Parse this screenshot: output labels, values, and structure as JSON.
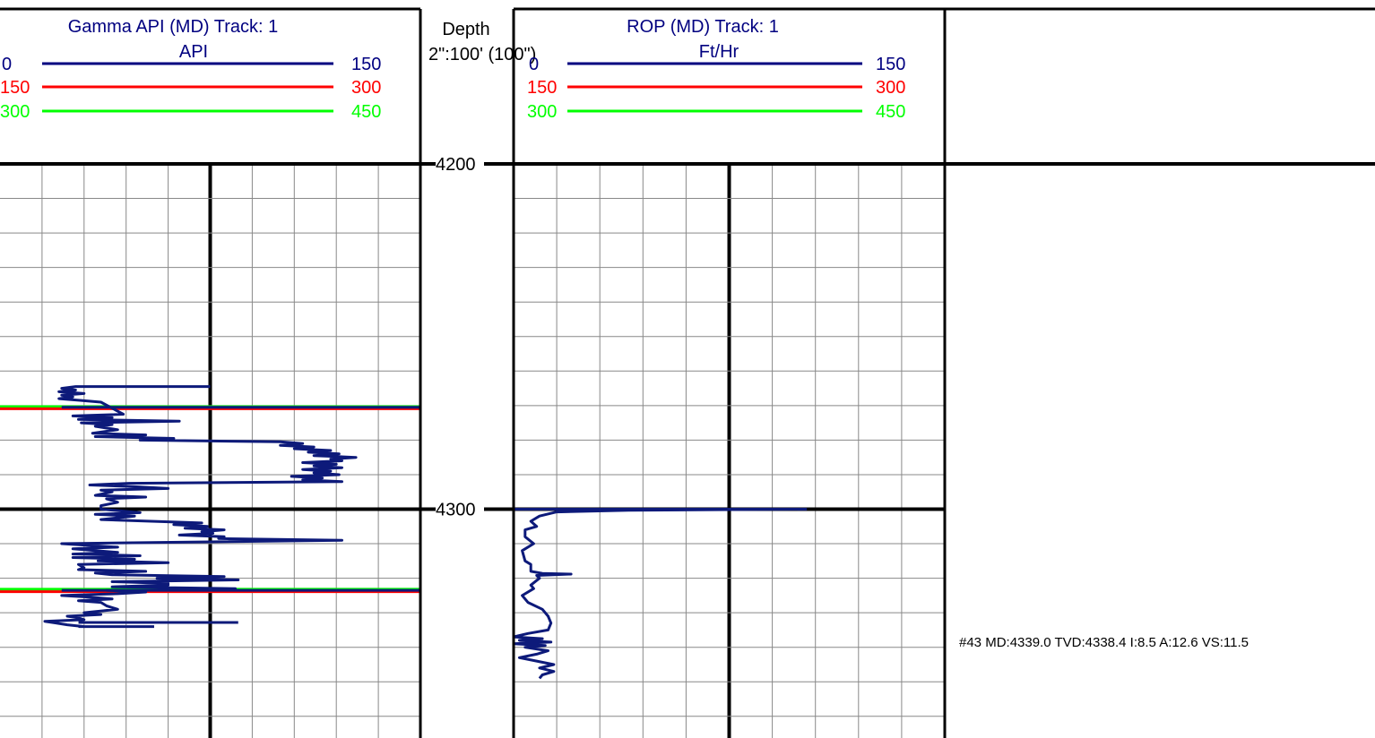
{
  "chart_data": {
    "type": "line",
    "depth": {
      "title": "Depth",
      "scale_label": "2\":100' (100\")",
      "range": [
        4200,
        4334
      ],
      "ticks": [
        4200,
        4300
      ]
    },
    "tracks": [
      {
        "title": "Gamma API (MD) Track: 1",
        "unit": "API",
        "scales": [
          {
            "min": "0",
            "max": "150",
            "color": "#000080"
          },
          {
            "min": "150",
            "max": "300",
            "color": "#ff0000"
          },
          {
            "min": "300",
            "max": "450",
            "color": "#00ff00"
          }
        ],
        "x_range": [
          0,
          150
        ],
        "series": [
          {
            "color": "#0d1a7a",
            "points": [
              [
                75,
                4264.5
              ],
              [
                27,
                4264.5
              ],
              [
                22,
                4265
              ],
              [
                27,
                4265.5
              ],
              [
                21,
                4266
              ],
              [
                30,
                4266.5
              ],
              [
                22,
                4267
              ],
              [
                26,
                4267.5
              ],
              [
                21,
                4268
              ],
              [
                29,
                4268.5
              ],
              [
                36,
                4269
              ],
              [
                44,
                4272.5
              ],
              [
                26,
                4273
              ],
              [
                40,
                4273.5
              ],
              [
                28,
                4274
              ],
              [
                64,
                4274.5
              ],
              [
                29,
                4275
              ],
              [
                40,
                4275.5
              ],
              [
                34,
                4276
              ],
              [
                42,
                4277
              ],
              [
                33,
                4278
              ],
              [
                52,
                4278.5
              ],
              [
                34,
                4279
              ],
              [
                62,
                4279.5
              ],
              [
                50,
                4280
              ],
              [
                100,
                4280.5
              ],
              [
                108,
                4281
              ],
              [
                100,
                4281.5
              ],
              [
                112,
                4282
              ],
              [
                105,
                4282.5
              ],
              [
                118,
                4283
              ],
              [
                110,
                4283.5
              ],
              [
                121,
                4284
              ],
              [
                112,
                4284.5
              ],
              [
                127,
                4285
              ],
              [
                118,
                4285.5
              ],
              [
                122,
                4286
              ],
              [
                108,
                4286.5
              ],
              [
                120,
                4287
              ],
              [
                112,
                4287.5
              ],
              [
                122,
                4288
              ],
              [
                108,
                4288.5
              ],
              [
                118,
                4289
              ],
              [
                112,
                4289.5
              ],
              [
                121,
                4290
              ],
              [
                104,
                4290.5
              ],
              [
                115,
                4291
              ],
              [
                108,
                4291.5
              ],
              [
                122,
                4292
              ],
              [
                46,
                4292.5
              ],
              [
                32,
                4293
              ],
              [
                48,
                4293.5
              ],
              [
                60,
                4294
              ],
              [
                36,
                4294.5
              ],
              [
                40,
                4295
              ],
              [
                34,
                4296
              ],
              [
                52,
                4296.5
              ],
              [
                38,
                4297
              ],
              [
                42,
                4298
              ],
              [
                36,
                4299
              ],
              [
                36,
                4300
              ],
              [
                50,
                4301
              ],
              [
                34,
                4301.5
              ],
              [
                48,
                4302
              ],
              [
                36,
                4303
              ],
              [
                54,
                4303.5
              ],
              [
                72,
                4304
              ],
              [
                62,
                4304.5
              ],
              [
                74,
                4305
              ],
              [
                66,
                4305.5
              ],
              [
                80,
                4306
              ],
              [
                72,
                4306.5
              ],
              [
                76,
                4307
              ],
              [
                64,
                4307.5
              ],
              [
                80,
                4308
              ],
              [
                78,
                4308.5
              ],
              [
                122,
                4309
              ],
              [
                22,
                4310
              ],
              [
                32,
                4310.5
              ],
              [
                42,
                4311
              ],
              [
                26,
                4311.5
              ],
              [
                34,
                4312
              ],
              [
                42,
                4312.5
              ],
              [
                26,
                4313
              ],
              [
                50,
                4313.5
              ],
              [
                26,
                4314
              ],
              [
                48,
                4314.5
              ],
              [
                35,
                4315
              ],
              [
                60,
                4315.5
              ],
              [
                28,
                4316
              ],
              [
                30,
                4317
              ],
              [
                28,
                4317.5
              ],
              [
                52,
                4318
              ],
              [
                34,
                4318.5
              ],
              [
                40,
                4319
              ],
              [
                80,
                4319.5
              ],
              [
                56,
                4320
              ],
              [
                85,
                4320.5
              ],
              [
                40,
                4321
              ],
              [
                60,
                4321.5
              ],
              [
                60,
                4322
              ],
              [
                40,
                4322.5
              ],
              [
                84,
                4323
              ],
              [
                38,
                4323.5
              ],
              [
                52,
                4324
              ],
              [
                42,
                4324.5
              ],
              [
                22,
                4325
              ],
              [
                32,
                4325.5
              ],
              [
                40,
                4326
              ],
              [
                28,
                4326.5
              ],
              [
                36,
                4327
              ],
              [
                38,
                4328
              ],
              [
                42,
                4329
              ],
              [
                30,
                4330
              ],
              [
                36,
                4330.5
              ],
              [
                24,
                4331
              ],
              [
                28,
                4331.5
              ],
              [
                30,
                4332
              ],
              [
                16,
                4332.5
              ],
              [
                20,
                4333
              ],
              [
                24,
                4333.5
              ],
              [
                30,
                4334
              ]
            ],
            "segments": [
              [
                [
                  22,
                  4270.5
                ],
                [
                  150,
                  4270.5
                ]
              ],
              [
                [
                  22,
                  4323.5
                ],
                [
                  150,
                  4323.5
                ]
              ],
              [
                [
                  28,
                  4332.8
                ],
                [
                  85,
                  4332.8
                ]
              ],
              [
                [
                  28,
                  4334
                ],
                [
                  55,
                  4334
                ]
              ]
            ]
          }
        ],
        "flags": [
          {
            "depth": 4270.3,
            "color": "#00ff00"
          },
          {
            "depth": 4270.9,
            "color": "#ff0000"
          },
          {
            "depth": 4323.2,
            "color": "#00ff00"
          },
          {
            "depth": 4323.9,
            "color": "#ff0000"
          }
        ]
      },
      {
        "title": "ROP (MD) Track: 1",
        "unit": "Ft/Hr",
        "scales": [
          {
            "min": "0",
            "max": "150",
            "color": "#000080"
          },
          {
            "min": "150",
            "max": "300",
            "color": "#ff0000"
          },
          {
            "min": "300",
            "max": "450",
            "color": "#00ff00"
          }
        ],
        "x_range": [
          0,
          150
        ],
        "series": [
          {
            "color": "#0d1a7a",
            "points": [
              [
                102,
                4300
              ],
              [
                40,
                4300.3
              ],
              [
                15,
                4300.8
              ],
              [
                9,
                4302
              ],
              [
                6,
                4303.5
              ],
              [
                8,
                4305
              ],
              [
                4,
                4306
              ],
              [
                4,
                4308
              ],
              [
                7,
                4310
              ],
              [
                3,
                4312
              ],
              [
                4,
                4315
              ],
              [
                6,
                4316
              ],
              [
                6,
                4318
              ],
              [
                10,
                4318.6
              ],
              [
                20,
                4318.8
              ],
              [
                8,
                4319.2
              ],
              [
                9,
                4320
              ],
              [
                6,
                4322
              ],
              [
                7,
                4323
              ],
              [
                3,
                4325
              ],
              [
                5,
                4327
              ],
              [
                10,
                4329
              ],
              [
                12,
                4331
              ],
              [
                13,
                4333
              ],
              [
                12,
                4335
              ],
              [
                5,
                4336
              ],
              [
                0,
                4337
              ],
              [
                10,
                4337.5
              ],
              [
                2,
                4338
              ],
              [
                13,
                4338.5
              ],
              [
                0,
                4339
              ],
              [
                11,
                4339.5
              ],
              [
                4,
                4340
              ],
              [
                12,
                4341
              ],
              [
                8,
                4342
              ],
              [
                2,
                4343
              ],
              [
                8,
                4344
              ],
              [
                14,
                4345
              ],
              [
                9,
                4346
              ],
              [
                14,
                4347
              ],
              [
                10,
                4348
              ],
              [
                9,
                4349
              ]
            ],
            "segments": [
              [
                [
                  102,
                  4300
                ],
                [
                  0,
                  4300
                ]
              ]
            ]
          }
        ],
        "flags": []
      }
    ],
    "annotation": "#43 MD:4339.0 TVD:4338.4 I:8.5 A:12.6 VS:11.5",
    "grid": true
  }
}
